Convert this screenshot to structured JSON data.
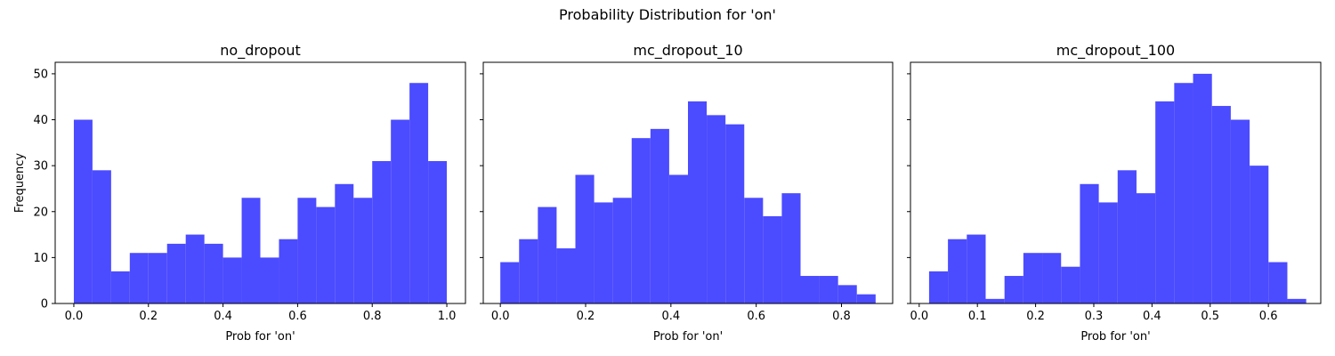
{
  "figure": {
    "suptitle": "Probability Distribution for 'on'"
  },
  "style": {
    "bar_color": "#4b4bff",
    "axes_color": "#000000",
    "background": "#ffffff"
  },
  "chart_data": [
    {
      "type": "bar",
      "title": "no_dropout",
      "xlabel": "Prob for 'on'",
      "ylabel": "Frequency",
      "xlim": [
        -0.05,
        1.05
      ],
      "ylim": [
        0,
        52.5
      ],
      "xticks": [
        0.0,
        0.2,
        0.4,
        0.6,
        0.8,
        1.0
      ],
      "xtick_labels": [
        "0.0",
        "0.2",
        "0.4",
        "0.6",
        "0.8",
        "1.0"
      ],
      "yticks": [
        0,
        10,
        20,
        30,
        40,
        50
      ],
      "ytick_labels": [
        "0",
        "10",
        "20",
        "30",
        "40",
        "50"
      ],
      "bin_edges": [
        0.0,
        0.05,
        0.1,
        0.15,
        0.2,
        0.25,
        0.3,
        0.35,
        0.4,
        0.45,
        0.5,
        0.55,
        0.6,
        0.65,
        0.7,
        0.75,
        0.8,
        0.85,
        0.9,
        0.95,
        1.0
      ],
      "values": [
        40,
        29,
        7,
        11,
        11,
        13,
        15,
        13,
        10,
        23,
        10,
        14,
        23,
        21,
        26,
        23,
        31,
        40,
        48,
        31
      ]
    },
    {
      "type": "bar",
      "title": "mc_dropout_10",
      "xlabel": "Prob for 'on'",
      "ylabel": "",
      "xlim": [
        -0.04,
        0.92
      ],
      "ylim": [
        0,
        52.5
      ],
      "xticks": [
        0.0,
        0.2,
        0.4,
        0.6,
        0.8
      ],
      "xtick_labels": [
        "0.0",
        "0.2",
        "0.4",
        "0.6",
        "0.8"
      ],
      "yticks": [
        0,
        10,
        20,
        30,
        40,
        50
      ],
      "ytick_labels": [],
      "bin_edges": [
        0.0,
        0.044,
        0.088,
        0.132,
        0.176,
        0.22,
        0.264,
        0.308,
        0.352,
        0.396,
        0.44,
        0.484,
        0.528,
        0.572,
        0.616,
        0.66,
        0.704,
        0.748,
        0.792,
        0.836,
        0.88
      ],
      "values": [
        9,
        14,
        21,
        12,
        28,
        22,
        23,
        36,
        38,
        28,
        44,
        41,
        39,
        23,
        19,
        24,
        6,
        6,
        4,
        2
      ]
    },
    {
      "type": "bar",
      "title": "mc_dropout_100",
      "xlabel": "Prob for 'on'",
      "ylabel": "",
      "xlim": [
        -0.015,
        0.69
      ],
      "ylim": [
        0,
        52.5
      ],
      "xticks": [
        0.0,
        0.1,
        0.2,
        0.3,
        0.4,
        0.5,
        0.6
      ],
      "xtick_labels": [
        "0.0",
        "0.1",
        "0.2",
        "0.3",
        "0.4",
        "0.5",
        "0.6"
      ],
      "yticks": [
        0,
        10,
        20,
        30,
        40,
        50
      ],
      "ytick_labels": [],
      "bin_edges": [
        0.017,
        0.0494,
        0.0818,
        0.1142,
        0.1466,
        0.179,
        0.2114,
        0.2438,
        0.2762,
        0.3086,
        0.341,
        0.3734,
        0.4058,
        0.4382,
        0.4706,
        0.503,
        0.5354,
        0.5678,
        0.6002,
        0.6326,
        0.665
      ],
      "values": [
        7,
        14,
        15,
        1,
        6,
        11,
        11,
        8,
        26,
        22,
        29,
        24,
        44,
        48,
        50,
        43,
        40,
        30,
        9,
        1
      ]
    }
  ]
}
